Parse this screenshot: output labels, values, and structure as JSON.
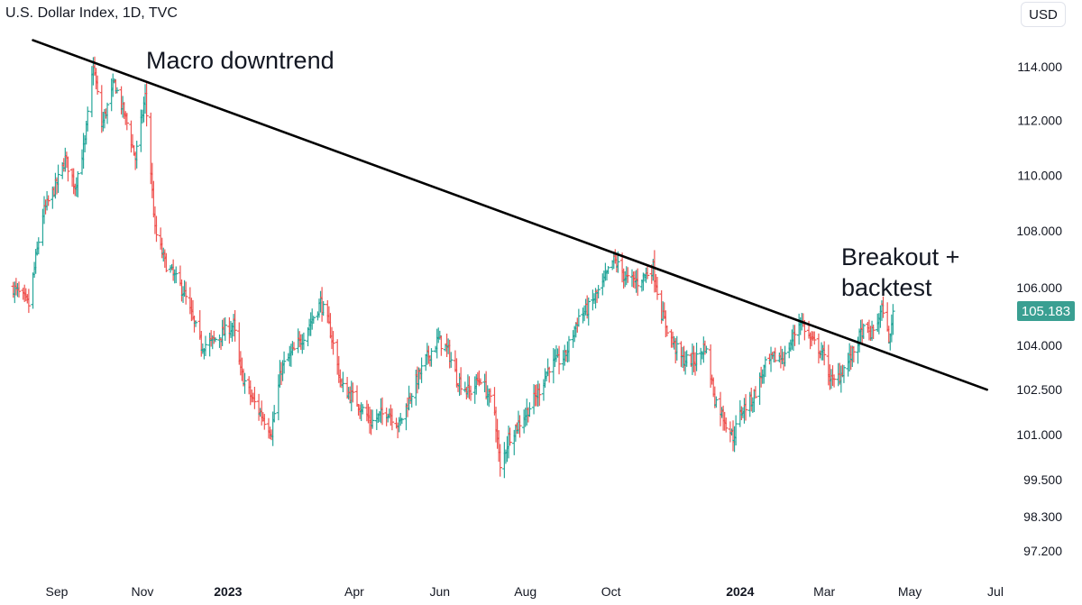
{
  "header": {
    "title": "U.S. Dollar Index, 1D, TVC",
    "currency_button": "USD"
  },
  "annotations": {
    "macro": "Macro downtrend",
    "breakout_line1": "Breakout +",
    "breakout_line2": "backtest"
  },
  "last_price": "105.183",
  "colors": {
    "up": "#26a69a",
    "down": "#ef5350",
    "trendline": "#000000",
    "price_tag": "#3a9f92"
  },
  "chart_data": {
    "type": "ohlc",
    "title": "U.S. Dollar Index, 1D, TVC",
    "y_axis_side": "right",
    "ylim": [
      96.5,
      115.5
    ],
    "y_scale": "log",
    "y_ticks": [
      "114.000",
      "112.000",
      "110.000",
      "108.000",
      "106.000",
      "104.000",
      "102.500",
      "101.000",
      "99.500",
      "98.300",
      "97.200"
    ],
    "x_ticks": [
      {
        "label": "Sep",
        "date": "2022-09-01",
        "bold": false
      },
      {
        "label": "Nov",
        "date": "2022-11-01",
        "bold": false
      },
      {
        "label": "2023",
        "date": "2023-01-01",
        "bold": true
      },
      {
        "label": "Apr",
        "date": "2023-04-01",
        "bold": false
      },
      {
        "label": "Jun",
        "date": "2023-06-01",
        "bold": false
      },
      {
        "label": "Aug",
        "date": "2023-08-01",
        "bold": false
      },
      {
        "label": "Oct",
        "date": "2023-10-01",
        "bold": false
      },
      {
        "label": "2024",
        "date": "2024-01-01",
        "bold": true
      },
      {
        "label": "Mar",
        "date": "2024-03-01",
        "bold": false
      },
      {
        "label": "May",
        "date": "2024-05-01",
        "bold": false
      },
      {
        "label": "Jul",
        "date": "2024-07-01",
        "bold": false
      }
    ],
    "xlim": [
      "2022-08-01",
      "2024-07-15"
    ],
    "last_value": 105.183,
    "trendline": {
      "from": {
        "date": "2022-08-15",
        "value": 115.0
      },
      "to": {
        "date": "2024-06-25",
        "value": 102.5
      }
    },
    "series_path": [
      [
        "2022-08-01",
        106.0
      ],
      [
        "2022-08-12",
        105.4
      ],
      [
        "2022-08-22",
        108.6
      ],
      [
        "2022-09-01",
        109.7
      ],
      [
        "2022-09-07",
        110.6
      ],
      [
        "2022-09-14",
        109.6
      ],
      [
        "2022-09-21",
        111.2
      ],
      [
        "2022-09-27",
        114.1
      ],
      [
        "2022-10-03",
        111.8
      ],
      [
        "2022-10-12",
        113.4
      ],
      [
        "2022-10-21",
        111.9
      ],
      [
        "2022-10-27",
        110.6
      ],
      [
        "2022-11-03",
        112.9
      ],
      [
        "2022-11-10",
        108.0
      ],
      [
        "2022-11-17",
        106.9
      ],
      [
        "2022-11-30",
        105.9
      ],
      [
        "2022-12-13",
        104.0
      ],
      [
        "2022-12-20",
        104.1
      ],
      [
        "2023-01-05",
        104.7
      ],
      [
        "2023-01-10",
        103.1
      ],
      [
        "2023-01-18",
        102.2
      ],
      [
        "2023-02-01",
        101.1
      ],
      [
        "2023-02-08",
        103.2
      ],
      [
        "2023-02-21",
        104.1
      ],
      [
        "2023-03-02",
        104.9
      ],
      [
        "2023-03-08",
        105.5
      ],
      [
        "2023-03-15",
        104.5
      ],
      [
        "2023-03-23",
        102.6
      ],
      [
        "2023-04-03",
        102.1
      ],
      [
        "2023-04-13",
        101.4
      ],
      [
        "2023-04-25",
        101.8
      ],
      [
        "2023-05-03",
        101.3
      ],
      [
        "2023-05-11",
        102.3
      ],
      [
        "2023-05-22",
        103.5
      ],
      [
        "2023-05-31",
        104.2
      ],
      [
        "2023-06-07",
        103.8
      ],
      [
        "2023-06-13",
        102.9
      ],
      [
        "2023-06-22",
        102.4
      ],
      [
        "2023-06-30",
        102.9
      ],
      [
        "2023-07-10",
        101.8
      ],
      [
        "2023-07-14",
        99.8
      ],
      [
        "2023-07-20",
        100.9
      ],
      [
        "2023-07-31",
        101.6
      ],
      [
        "2023-08-10",
        102.4
      ],
      [
        "2023-08-18",
        103.3
      ],
      [
        "2023-08-29",
        103.6
      ],
      [
        "2023-09-08",
        105.0
      ],
      [
        "2023-09-15",
        105.3
      ],
      [
        "2023-09-25",
        106.1
      ],
      [
        "2023-10-03",
        107.0
      ],
      [
        "2023-10-12",
        106.3
      ],
      [
        "2023-10-20",
        106.2
      ],
      [
        "2023-10-31",
        106.7
      ],
      [
        "2023-11-06",
        105.1
      ],
      [
        "2023-11-14",
        104.1
      ],
      [
        "2023-11-21",
        103.5
      ],
      [
        "2023-11-30",
        103.5
      ],
      [
        "2023-12-07",
        104.0
      ],
      [
        "2023-12-14",
        102.2
      ],
      [
        "2023-12-27",
        100.9
      ],
      [
        "2024-01-02",
        101.8
      ],
      [
        "2024-01-10",
        102.2
      ],
      [
        "2024-01-19",
        103.3
      ],
      [
        "2024-01-26",
        103.6
      ],
      [
        "2024-02-02",
        103.6
      ],
      [
        "2024-02-13",
        104.9
      ],
      [
        "2024-02-20",
        104.2
      ],
      [
        "2024-02-28",
        103.8
      ],
      [
        "2024-03-07",
        102.7
      ],
      [
        "2024-03-12",
        103.0
      ],
      [
        "2024-03-20",
        103.6
      ],
      [
        "2024-03-28",
        104.5
      ],
      [
        "2024-04-04",
        104.4
      ],
      [
        "2024-04-10",
        105.1
      ],
      [
        "2024-04-12",
        105.3
      ],
      [
        "2024-04-15",
        104.4
      ],
      [
        "2024-04-17",
        104.2
      ],
      [
        "2024-04-19",
        105.18
      ]
    ]
  }
}
